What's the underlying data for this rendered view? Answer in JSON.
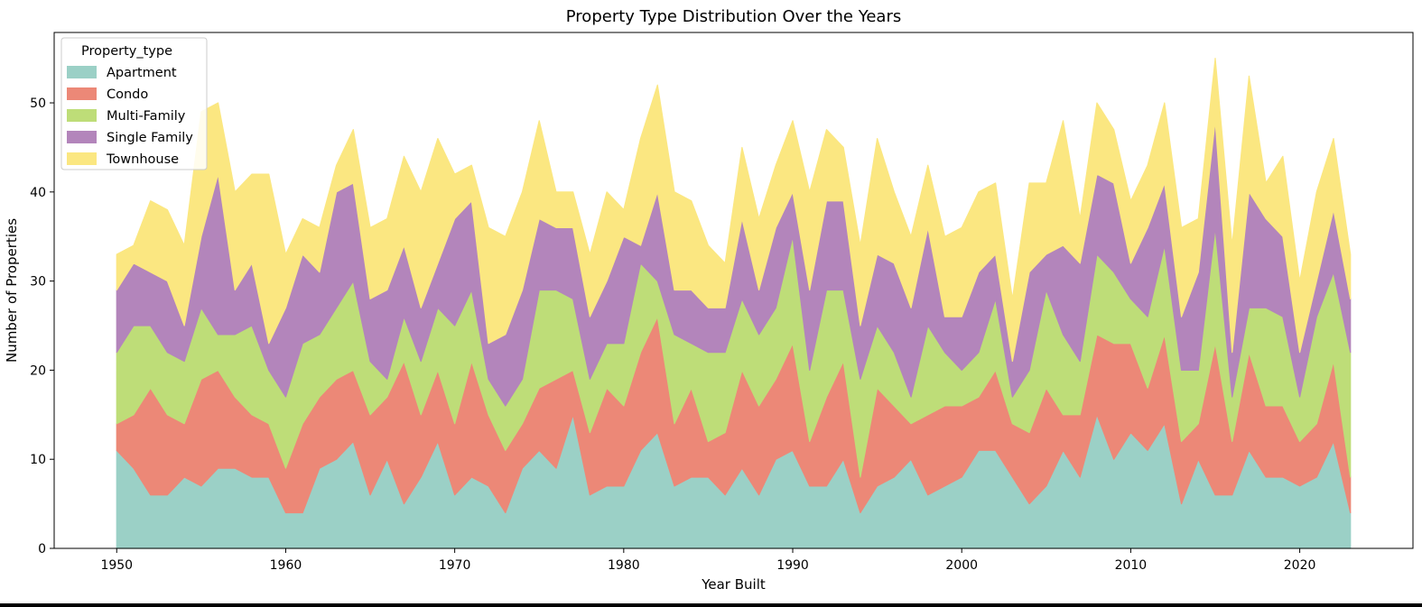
{
  "chart_data": {
    "type": "area",
    "stacked": true,
    "title": "Property Type Distribution Over the Years",
    "xlabel": "Year Built",
    "ylabel": "Number of Properties",
    "xlim": [
      1946.3,
      2026.7
    ],
    "ylim": [
      0,
      57.9
    ],
    "xticks": [
      1950,
      1960,
      1970,
      1980,
      1990,
      2000,
      2010,
      2020
    ],
    "yticks": [
      0,
      10,
      20,
      30,
      40,
      50
    ],
    "grid": false,
    "legend": {
      "title": "Property_type",
      "placement": "top-left"
    },
    "x": [
      1950,
      1951,
      1952,
      1953,
      1954,
      1955,
      1956,
      1957,
      1958,
      1959,
      1960,
      1961,
      1962,
      1963,
      1964,
      1965,
      1966,
      1967,
      1968,
      1969,
      1970,
      1971,
      1972,
      1973,
      1974,
      1975,
      1976,
      1977,
      1978,
      1979,
      1980,
      1981,
      1982,
      1983,
      1984,
      1985,
      1986,
      1987,
      1988,
      1989,
      1990,
      1991,
      1992,
      1993,
      1994,
      1995,
      1996,
      1997,
      1998,
      1999,
      2000,
      2001,
      2002,
      2003,
      2004,
      2005,
      2006,
      2007,
      2008,
      2009,
      2010,
      2011,
      2012,
      2013,
      2014,
      2015,
      2016,
      2017,
      2018,
      2019,
      2020,
      2021,
      2022,
      2023
    ],
    "series": [
      {
        "name": "Apartment",
        "color": "#9bd0c6",
        "values": [
          11,
          9,
          6,
          6,
          8,
          7,
          9,
          9,
          8,
          8,
          4,
          4,
          9,
          10,
          12,
          6,
          10,
          5,
          8,
          12,
          6,
          8,
          7,
          4,
          9,
          11,
          9,
          15,
          6,
          7,
          7,
          11,
          13,
          7,
          8,
          8,
          6,
          9,
          6,
          10,
          11,
          7,
          7,
          10,
          4,
          7,
          8,
          10,
          6,
          7,
          8,
          11,
          11,
          8,
          5,
          7,
          11,
          8,
          15,
          10,
          13,
          11,
          14,
          5,
          10,
          6,
          6,
          11,
          8,
          8,
          7,
          8,
          12,
          4
        ]
      },
      {
        "name": "Condo",
        "color": "#ec8877",
        "values": [
          3,
          6,
          12,
          9,
          6,
          12,
          11,
          8,
          7,
          6,
          5,
          10,
          8,
          9,
          8,
          9,
          7,
          16,
          7,
          8,
          8,
          13,
          8,
          7,
          5,
          7,
          10,
          5,
          7,
          11,
          9,
          11,
          13,
          7,
          10,
          4,
          7,
          11,
          10,
          9,
          12,
          5,
          10,
          11,
          4,
          11,
          8,
          4,
          9,
          9,
          8,
          6,
          9,
          6,
          8,
          11,
          4,
          7,
          9,
          13,
          10,
          7,
          10,
          7,
          4,
          17,
          6,
          11,
          8,
          8,
          5,
          6,
          9,
          4
        ]
      },
      {
        "name": "Multi-Family",
        "color": "#bedd78",
        "values": [
          8,
          10,
          7,
          7,
          7,
          8,
          4,
          7,
          10,
          6,
          8,
          9,
          7,
          8,
          10,
          6,
          2,
          5,
          6,
          7,
          11,
          8,
          4,
          5,
          5,
          11,
          10,
          8,
          6,
          5,
          7,
          10,
          4,
          10,
          5,
          10,
          9,
          8,
          8,
          8,
          12,
          8,
          12,
          8,
          11,
          7,
          6,
          3,
          10,
          6,
          4,
          5,
          8,
          3,
          7,
          11,
          9,
          6,
          9,
          8,
          5,
          8,
          10,
          8,
          6,
          13,
          5,
          5,
          11,
          10,
          5,
          12,
          10,
          14
        ]
      },
      {
        "name": "Single Family",
        "color": "#b385bb",
        "values": [
          7,
          7,
          6,
          8,
          4,
          8,
          18,
          5,
          7,
          3,
          10,
          10,
          7,
          13,
          11,
          7,
          10,
          8,
          6,
          5,
          12,
          10,
          4,
          8,
          10,
          8,
          7,
          8,
          7,
          7,
          12,
          2,
          10,
          5,
          6,
          5,
          5,
          9,
          5,
          9,
          5,
          9,
          10,
          10,
          6,
          8,
          10,
          10,
          11,
          4,
          6,
          9,
          5,
          4,
          11,
          4,
          10,
          11,
          9,
          10,
          4,
          10,
          7,
          6,
          11,
          12,
          5,
          13,
          10,
          9,
          5,
          4,
          7,
          6
        ]
      },
      {
        "name": "Townhouse",
        "color": "#fbe781",
        "values": [
          4,
          2,
          8,
          8,
          9,
          14,
          8,
          11,
          10,
          19,
          6,
          4,
          5,
          3,
          6,
          8,
          8,
          10,
          13,
          14,
          5,
          4,
          13,
          11,
          11,
          11,
          4,
          4,
          7,
          10,
          3,
          12,
          12,
          11,
          10,
          7,
          5,
          8,
          8,
          7,
          8,
          11,
          8,
          6,
          9,
          13,
          8,
          8,
          7,
          9,
          10,
          9,
          8,
          7,
          10,
          8,
          14,
          5,
          8,
          6,
          7,
          7,
          9,
          10,
          6,
          7,
          12,
          13,
          4,
          9,
          8,
          10,
          8,
          5
        ]
      }
    ]
  }
}
